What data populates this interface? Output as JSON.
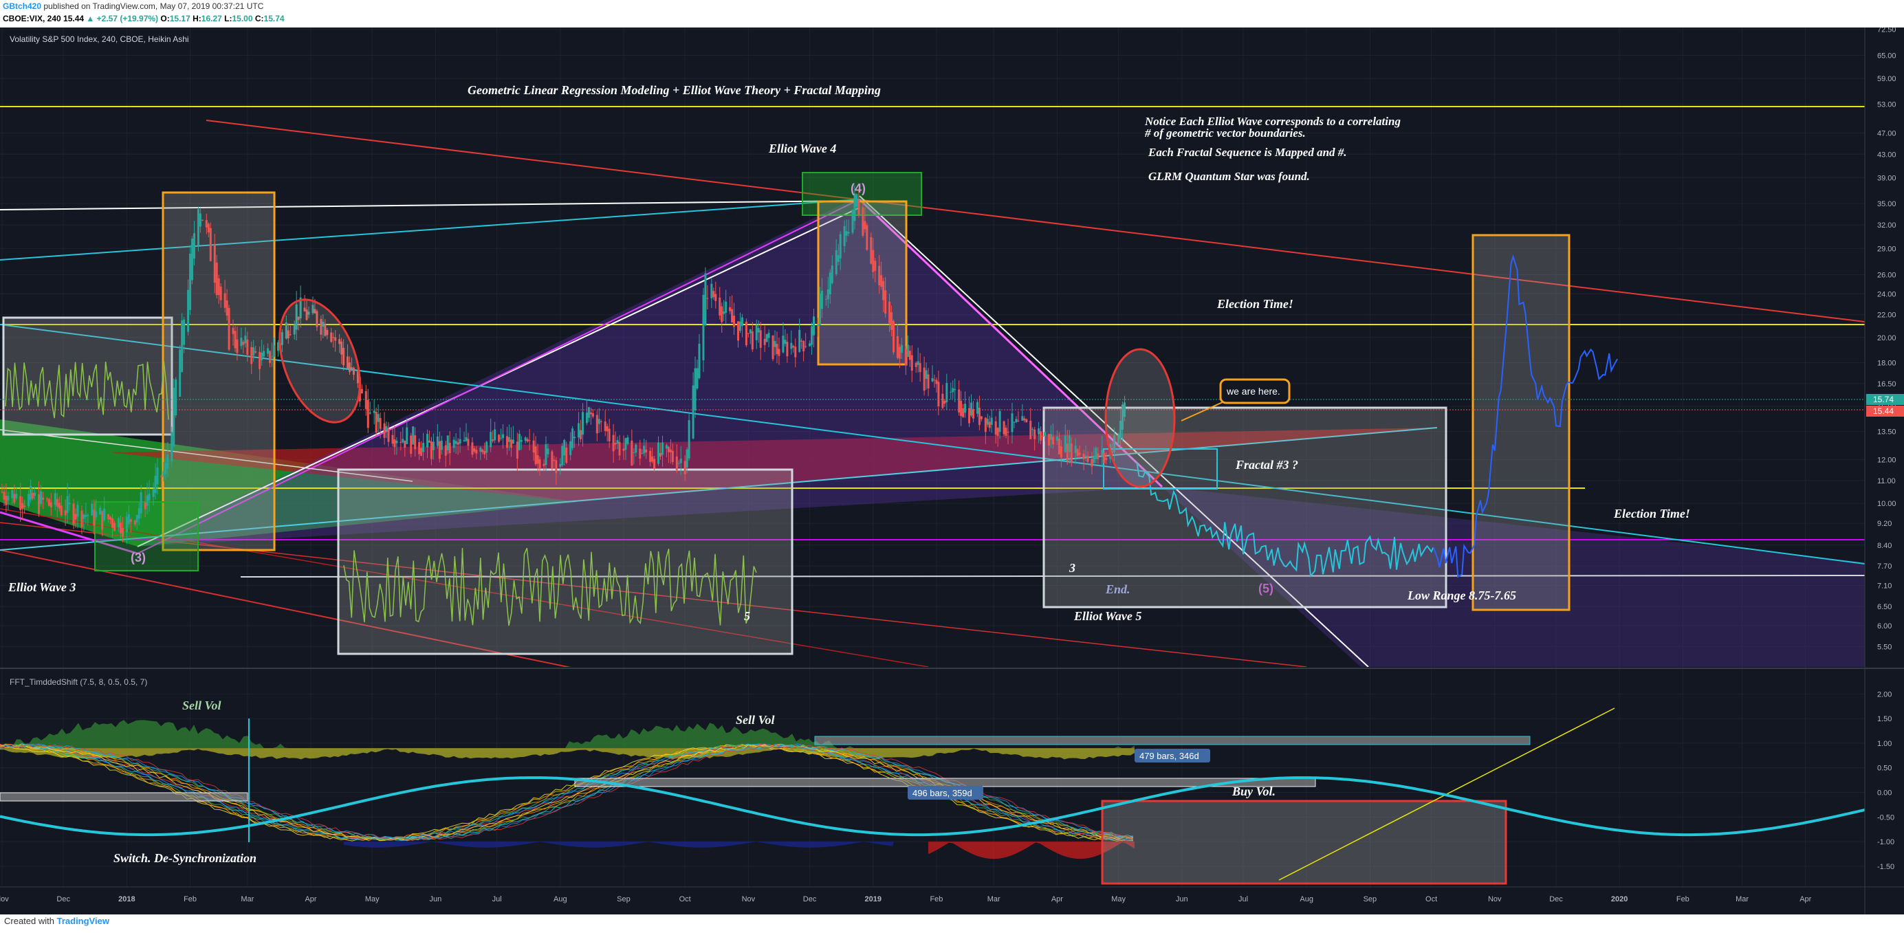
{
  "header": {
    "user": "GBtch420",
    "published": "published on TradingView.com, May 07, 2019 00:37:21 UTC",
    "symbol": "CBOE:VIX, 240",
    "last": "15.44",
    "change": "▲ +2.57 (+19.97%)",
    "o_label": "O:",
    "o": "15.17",
    "h_label": "H:",
    "h": "16.27",
    "l_label": "L:",
    "l": "15.00",
    "c_label": "C:",
    "c": "15.74"
  },
  "footer": {
    "prefix": "Created with",
    "brand": "TradingView"
  },
  "colors": {
    "background": "#131722",
    "bull": "#26a69a",
    "bear": "#ef5350",
    "cyan": "#26c6da",
    "yellow": "#e6e600",
    "orange": "#f7a21b",
    "magenta": "#e040fb",
    "red": "#d32f2f"
  },
  "chart_data": [
    {
      "type": "line",
      "title": "Volatility S&P 500 Index, 240, CBOE, Heikin Ashi",
      "y_scale": "log",
      "x_ticks": [
        "Nov",
        "Dec",
        "2018",
        "Feb",
        "Mar",
        "Apr",
        "May",
        "Jun",
        "Jul",
        "Aug",
        "Sep",
        "Oct",
        "Nov",
        "Dec",
        "2019",
        "Feb",
        "Mar",
        "Apr",
        "May",
        "Jun",
        "Jul",
        "Aug",
        "Sep",
        "Oct",
        "Nov",
        "Dec",
        "2020",
        "Feb",
        "Mar",
        "Apr"
      ],
      "y_ticks": [
        "72.50",
        "65.00",
        "59.00",
        "53.00",
        "47.00",
        "43.00",
        "39.00",
        "35.00",
        "32.00",
        "29.00",
        "26.00",
        "24.00",
        "22.00",
        "20.00",
        "18.00",
        "16.50",
        "15.00",
        "13.50",
        "12.00",
        "11.00",
        "10.00",
        "9.20",
        "8.40",
        "7.70",
        "7.10",
        "6.50",
        "6.00",
        "5.50"
      ],
      "price_badges": [
        "15.74",
        "15.44"
      ],
      "series": [
        {
          "name": "",
          "x": [
            "2017-11-01",
            "2017-12-01",
            "2018-01-01",
            "2018-01-20",
            "2018-02-05",
            "2018-02-20",
            "2018-03-10",
            "2018-03-25",
            "2018-04-10",
            "2018-05-01",
            "2018-06-01",
            "2018-07-01",
            "2018-08-01",
            "2018-08-15",
            "2018-09-01",
            "2018-10-01",
            "2018-10-11",
            "2018-10-25",
            "2018-11-15",
            "2018-12-01",
            "2018-12-24",
            "2019-01-10",
            "2019-02-01",
            "2019-03-01",
            "2019-03-20",
            "2019-04-10",
            "2019-04-25",
            "2019-05-06"
          ],
          "y": [
            10.5,
            9.8,
            9.2,
            11.5,
            36.0,
            20.0,
            18.0,
            22.5,
            21.0,
            14.0,
            12.5,
            13.0,
            12.0,
            14.5,
            12.5,
            12.0,
            25.0,
            21.0,
            19.0,
            20.0,
            36.0,
            20.0,
            16.0,
            14.0,
            13.5,
            12.5,
            12.0,
            15.74
          ]
        },
        {
          "name": "",
          "x": [
            "2019-05-10",
            "2019-05-20",
            "2019-06-01",
            "2019-06-15",
            "2019-07-01",
            "2019-07-15",
            "2019-08-01",
            "2019-08-15",
            "2019-09-01",
            "2019-09-15",
            "2019-10-01",
            "2019-10-15",
            "2019-10-25",
            "2019-11-01",
            "2019-11-10",
            "2019-11-20",
            "2019-12-01",
            "2019-12-15",
            "2020-01-01"
          ],
          "y": [
            12.0,
            10.5,
            9.5,
            9.0,
            8.5,
            8.2,
            7.9,
            8.0,
            8.3,
            8.1,
            8.4,
            7.8,
            9.5,
            12.5,
            28.0,
            17.0,
            14.0,
            18.5,
            17.5
          ]
        }
      ],
      "annotations": [
        "Geometric Linear Regression Modeling + Elliot Wave Theory + Fractal Mapping",
        "Notice Each Elliot Wave corresponds to a correlating",
        "# of geometric vector boundaries.",
        "Each Fractal Sequence is Mapped and #.",
        "GLRM Quantum Star was found.",
        "Elliot Wave 4",
        "(4)",
        "Election Time!",
        "we are here.",
        "Fractal #3 ?",
        "Election Time!",
        "(3)",
        "Elliot Wave 3",
        "3",
        "End.",
        "(5)",
        "Elliot Wave 5",
        "Low Range 8.75-7.65",
        "5"
      ]
    },
    {
      "type": "line",
      "title": "FFT_TimddedShift (7.5, 8, 0.5, 0.5, 7)",
      "y_ticks": [
        "2.00",
        "1.50",
        "1.00",
        "0.50",
        "0.00",
        "-0.50",
        "-1.00",
        "-1.50"
      ],
      "series": [
        {
          "name": "",
          "x": [
            "2017-11-01",
            "2018-03-15",
            "2018-07-01",
            "2018-10-15",
            "2019-02-01",
            "2019-05-15",
            "2019-09-01",
            "2019-12-15",
            "2020-04-15"
          ],
          "y": [
            -0.8,
            -0.4,
            0.5,
            -0.3,
            -1.0,
            0.3,
            0.5,
            -1.1,
            0.0
          ]
        }
      ],
      "annotations": [
        "Sell Vol",
        "Sell Vol",
        "Buy Vol.",
        "Switch. De-Synchronization",
        "479 bars, 346d",
        "496 bars, 359d"
      ]
    }
  ]
}
